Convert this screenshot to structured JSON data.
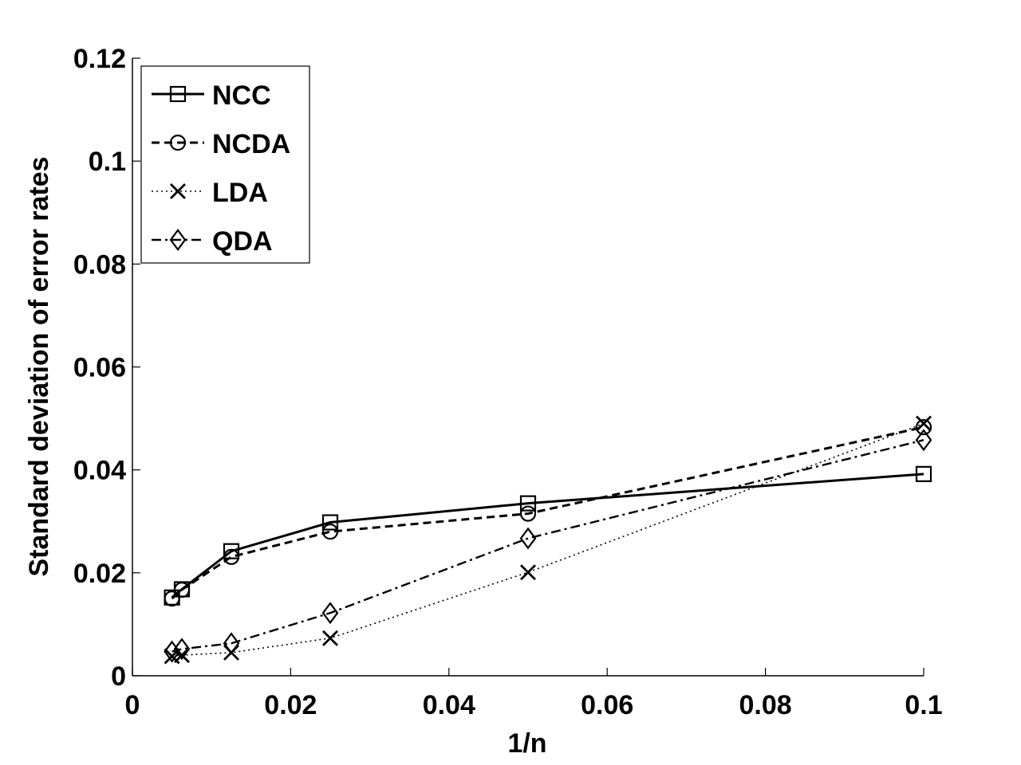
{
  "chart_data": {
    "type": "line",
    "xlabel": "1/n",
    "ylabel": "Standard deviation of  error rates",
    "xlim": [
      0,
      0.1
    ],
    "ylim": [
      0,
      0.12
    ],
    "xticks": [
      0,
      0.02,
      0.04,
      0.06,
      0.08,
      0.1
    ],
    "xtick_labels": [
      "0",
      "0.02",
      "0.04",
      "0.06",
      "0.08",
      "0.1"
    ],
    "yticks": [
      0,
      0.02,
      0.04,
      0.06,
      0.08,
      0.1,
      0.12
    ],
    "ytick_labels": [
      "0",
      "0.02",
      "0.04",
      "0.06",
      "0.08",
      "0.1",
      "0.12"
    ],
    "grid": false,
    "legend": "top-left",
    "x": [
      0.005,
      0.00625,
      0.0125,
      0.025,
      0.05,
      0.1
    ],
    "series": [
      {
        "name": "NCC",
        "marker": "square",
        "dash": "solid",
        "values": [
          0.0152,
          0.0168,
          0.0242,
          0.0298,
          0.0335,
          0.0392
        ]
      },
      {
        "name": "NCDA",
        "marker": "circle",
        "dash": "dashed",
        "values": [
          0.015,
          0.0167,
          0.0231,
          0.028,
          0.0315,
          0.0483
        ]
      },
      {
        "name": "LDA",
        "marker": "x",
        "dash": "dotted",
        "values": [
          0.0038,
          0.004,
          0.0045,
          0.0073,
          0.0201,
          0.049
        ]
      },
      {
        "name": "QDA",
        "marker": "diamond",
        "dash": "dashdot",
        "values": [
          0.0047,
          0.0052,
          0.0063,
          0.0122,
          0.0267,
          0.0458
        ]
      }
    ]
  }
}
